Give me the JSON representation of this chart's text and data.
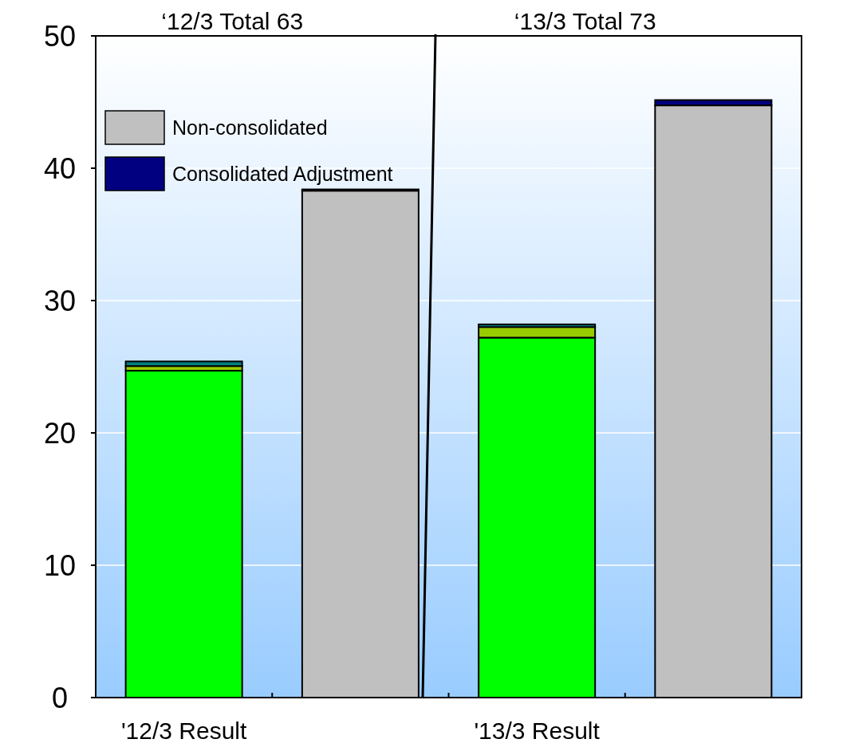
{
  "chart_data": {
    "type": "bar",
    "stacked": true,
    "categories": [
      "'12/3 Result",
      null,
      "'13/3 Result",
      null
    ],
    "series": [
      {
        "color": "#00ff00",
        "values": [
          24.7,
          null,
          27.2,
          null
        ]
      },
      {
        "color": "#99cc00",
        "values": [
          0.35,
          null,
          0.8,
          null
        ]
      },
      {
        "color": "#008080",
        "values": [
          0.35,
          null,
          0.2,
          null
        ]
      },
      {
        "name": "Non-consolidated",
        "color": "#c0c0c0",
        "values": [
          null,
          38.3,
          null,
          44.75
        ]
      },
      {
        "name": "Consolidated Adjustment",
        "color": "#000080",
        "values": [
          null,
          0.1,
          null,
          0.4
        ]
      }
    ],
    "ylim": [
      0,
      50
    ],
    "yticks": [
      0,
      10,
      20,
      30,
      40,
      50
    ],
    "grid": "y",
    "legend": "top left",
    "annotations": [
      "‘12/3 Total  63",
      "‘13/3 Total  73"
    ]
  }
}
